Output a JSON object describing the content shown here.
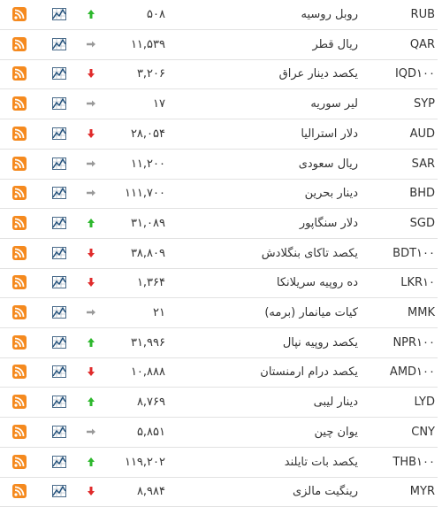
{
  "table": {
    "rows": [
      {
        "code": "RUB",
        "name": "روبل روسیه",
        "price": "۵۰۸",
        "trend": "up"
      },
      {
        "code": "QAR",
        "name": "ریال قطر",
        "price": "۱۱,۵۳۹",
        "trend": "same"
      },
      {
        "code": "IQD۱۰۰",
        "name": "یکصد دینار عراق",
        "price": "۳,۲۰۶",
        "trend": "down"
      },
      {
        "code": "SYP",
        "name": "لیر سوریه",
        "price": "۱۷",
        "trend": "same"
      },
      {
        "code": "AUD",
        "name": "دلار استرالیا",
        "price": "۲۸,۰۵۴",
        "trend": "down"
      },
      {
        "code": "SAR",
        "name": "ریال سعودی",
        "price": "۱۱,۲۰۰",
        "trend": "same"
      },
      {
        "code": "BHD",
        "name": "دینار بحرین",
        "price": "۱۱۱,۷۰۰",
        "trend": "same"
      },
      {
        "code": "SGD",
        "name": "دلار سنگاپور",
        "price": "۳۱,۰۸۹",
        "trend": "up"
      },
      {
        "code": "BDT۱۰۰",
        "name": "یکصد تاکای بنگلادش",
        "price": "۳۸,۸۰۹",
        "trend": "down"
      },
      {
        "code": "LKR۱۰",
        "name": "ده روپیه سریلانکا",
        "price": "۱,۳۶۴",
        "trend": "down"
      },
      {
        "code": "MMK",
        "name": "کیات میانمار (برمه)",
        "price": "۲۱",
        "trend": "same"
      },
      {
        "code": "NPR۱۰۰",
        "name": "یکصد روپیه نپال",
        "price": "۳۱,۹۹۶",
        "trend": "up"
      },
      {
        "code": "AMD۱۰۰",
        "name": "یکصد درام ارمنستان",
        "price": "۱۰,۸۸۸",
        "trend": "down"
      },
      {
        "code": "LYD",
        "name": "دینار لیبی",
        "price": "۸,۷۶۹",
        "trend": "up"
      },
      {
        "code": "CNY",
        "name": "یوان چین",
        "price": "۵,۸۵۱",
        "trend": "same"
      },
      {
        "code": "THB۱۰۰",
        "name": "یکصد بات تایلند",
        "price": "۱۱۹,۲۰۲",
        "trend": "up"
      },
      {
        "code": "MYR",
        "name": "رینگیت مالزی",
        "price": "۸,۹۸۴",
        "trend": "down"
      }
    ]
  }
}
